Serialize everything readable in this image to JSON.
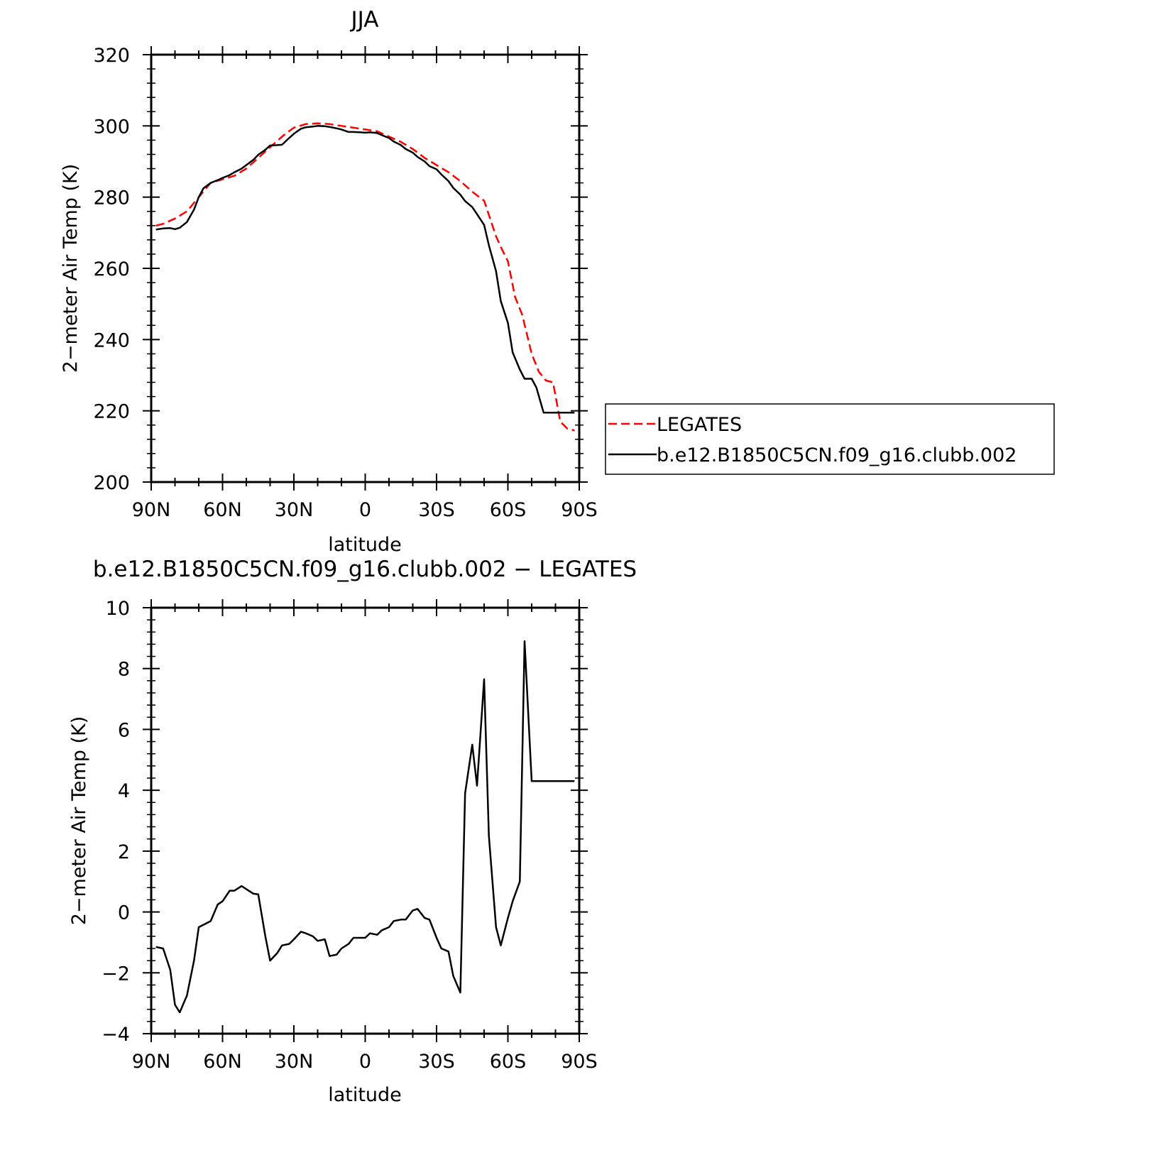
{
  "chart_data": [
    {
      "type": "line",
      "title": "JJA",
      "xlabel": "latitude",
      "ylabel": "2−meter Air Temp (K)",
      "xlim": [
        90,
        -90
      ],
      "ylim": [
        200,
        320
      ],
      "x_tick_values": [
        90,
        60,
        30,
        0,
        -30,
        -60,
        -90
      ],
      "x_tick_labels": [
        "90N",
        "60N",
        "30N",
        "0",
        "30S",
        "60S",
        "90S"
      ],
      "y_tick_values": [
        200,
        220,
        240,
        260,
        280,
        300,
        320
      ],
      "y_tick_labels": [
        "200",
        "220",
        "240",
        "260",
        "280",
        "300",
        "320"
      ],
      "grid": false,
      "legend_position": "right",
      "series": [
        {
          "name": "LEGATES",
          "style": "dashed",
          "color": "#ff0000",
          "x": [
            88,
            85,
            80,
            75,
            70,
            65,
            60,
            55,
            50,
            45,
            40,
            35,
            30,
            25,
            20,
            15,
            10,
            5,
            0,
            -5,
            -10,
            -15,
            -20,
            -25,
            -30,
            -35,
            -40,
            -45,
            -50,
            -55,
            -57,
            -60,
            -63,
            -66,
            -70,
            -73,
            -76,
            -79,
            -82,
            -85,
            -88
          ],
          "y": [
            272,
            272.5,
            274,
            276,
            280,
            284,
            285,
            286,
            288,
            291,
            294,
            297,
            299.5,
            300.5,
            300.7,
            300.5,
            300,
            299.5,
            299,
            298.5,
            297,
            295.5,
            293.5,
            291,
            289,
            287,
            284.5,
            281.5,
            279,
            269,
            266,
            262,
            252,
            247,
            236,
            231,
            228.5,
            228,
            217,
            215,
            214.5
          ]
        },
        {
          "name": "b.e12.B1850C5CN.f09_g16.clubb.002",
          "style": "solid",
          "color": "#000000",
          "x": [
            88,
            85,
            82,
            80,
            78,
            75,
            72,
            70,
            68,
            65,
            62,
            60,
            57,
            55,
            52,
            50,
            47,
            45,
            42,
            40,
            37,
            35,
            32,
            30,
            27,
            25,
            22,
            20,
            17,
            15,
            12,
            10,
            7,
            5,
            2,
            0,
            -2,
            -5,
            -7,
            -10,
            -12,
            -15,
            -17,
            -20,
            -22,
            -25,
            -27,
            -30,
            -32,
            -35,
            -37,
            -40,
            -42,
            -45,
            -47,
            -50,
            -52,
            -55,
            -57,
            -60,
            -62,
            -65,
            -67,
            -70,
            -72,
            -75,
            -77,
            -80,
            -82,
            -85,
            -88
          ],
          "y": [
            270.9,
            271.2,
            271.3,
            271,
            271.4,
            273,
            276.5,
            280,
            282.5,
            284,
            284.8,
            285.4,
            286.2,
            287,
            288,
            289,
            290.5,
            291.9,
            293.3,
            294.5,
            294.6,
            294.7,
            296.6,
            297.8,
            299.2,
            299.6,
            299.8,
            300,
            299.9,
            299.7,
            299.3,
            299,
            298.3,
            298.3,
            298.2,
            298.1,
            298.2,
            298,
            297.4,
            296.6,
            295.6,
            294.6,
            293.5,
            292.5,
            291.3,
            290,
            288.7,
            287.8,
            286.4,
            284.5,
            282.6,
            280.7,
            278.9,
            277.2,
            275.2,
            272.2,
            266.5,
            259.2,
            250.8,
            244.7,
            236.4,
            231.6,
            229,
            229,
            226.5,
            219.5,
            219.5,
            219.5,
            219.5,
            219.5,
            219.5
          ]
        }
      ]
    },
    {
      "type": "line",
      "title": "b.e12.B1850C5CN.f09_g16.clubb.002 − LEGATES",
      "xlabel": "latitude",
      "ylabel": "2−meter Air Temp (K)",
      "xlim": [
        90,
        -90
      ],
      "ylim": [
        -4,
        10
      ],
      "x_tick_values": [
        90,
        60,
        30,
        0,
        -30,
        -60,
        -90
      ],
      "x_tick_labels": [
        "90N",
        "60N",
        "30N",
        "0",
        "30S",
        "60S",
        "90S"
      ],
      "y_tick_values": [
        -4,
        -2,
        0,
        2,
        4,
        6,
        8,
        10
      ],
      "y_tick_labels": [
        "−4",
        "−2",
        "0",
        "2",
        "4",
        "6",
        "8",
        "10"
      ],
      "grid": false,
      "series": [
        {
          "style": "solid",
          "color": "#000000",
          "x": [
            88,
            85,
            82,
            80,
            78,
            75,
            72,
            70,
            67,
            65,
            62,
            60,
            57,
            55,
            52,
            50,
            47,
            45,
            42,
            40,
            37,
            35,
            32,
            30,
            27,
            25,
            22,
            20,
            17,
            15,
            12,
            10,
            7,
            5,
            2,
            0,
            -2,
            -5,
            -7,
            -10,
            -12,
            -15,
            -17,
            -20,
            -22,
            -25,
            -27,
            -30,
            -32,
            -35,
            -37,
            -40,
            -42,
            -45,
            -47,
            -50,
            -52,
            -55,
            -57,
            -60,
            -62,
            -65,
            -67,
            -70,
            -72,
            -75,
            -77,
            -80,
            -82,
            -85,
            -88
          ],
          "y": [
            -1.15,
            -1.2,
            -1.9,
            -3.05,
            -3.3,
            -2.75,
            -1.6,
            -0.5,
            -0.38,
            -0.3,
            0.25,
            0.35,
            0.7,
            0.7,
            0.85,
            0.75,
            0.6,
            0.58,
            -0.8,
            -1.6,
            -1.35,
            -1.1,
            -1.05,
            -0.9,
            -0.65,
            -0.7,
            -0.8,
            -0.95,
            -0.9,
            -1.45,
            -1.4,
            -1.2,
            -1.05,
            -0.85,
            -0.85,
            -0.85,
            -0.7,
            -0.75,
            -0.6,
            -0.5,
            -0.3,
            -0.25,
            -0.25,
            0.05,
            0.1,
            -0.2,
            -0.25,
            -0.85,
            -1.2,
            -1.3,
            -2.1,
            -2.65,
            3.9,
            5.5,
            4.15,
            7.65,
            2.5,
            -0.5,
            -1.1,
            -0.2,
            0.35,
            1.0,
            8.9,
            4.3,
            4.3,
            4.3,
            4.3,
            4.3,
            4.3,
            4.3,
            4.3
          ]
        }
      ]
    }
  ]
}
